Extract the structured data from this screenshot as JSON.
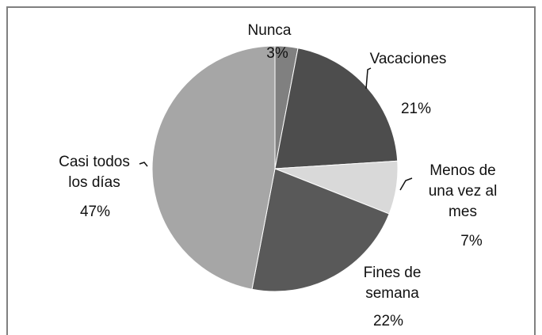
{
  "chart_data": {
    "type": "pie",
    "categories": [
      "Nunca",
      "Vacaciones",
      "Menos de una vez al mes",
      "Fines de semana",
      "Casi todos los días"
    ],
    "values": [
      3,
      21,
      7,
      22,
      47
    ],
    "value_labels": [
      "3%",
      "21%",
      "7%",
      "22%",
      "47%"
    ],
    "colors": [
      "#808080",
      "#4d4d4d",
      "#d9d9d9",
      "#595959",
      "#a6a6a6"
    ]
  }
}
